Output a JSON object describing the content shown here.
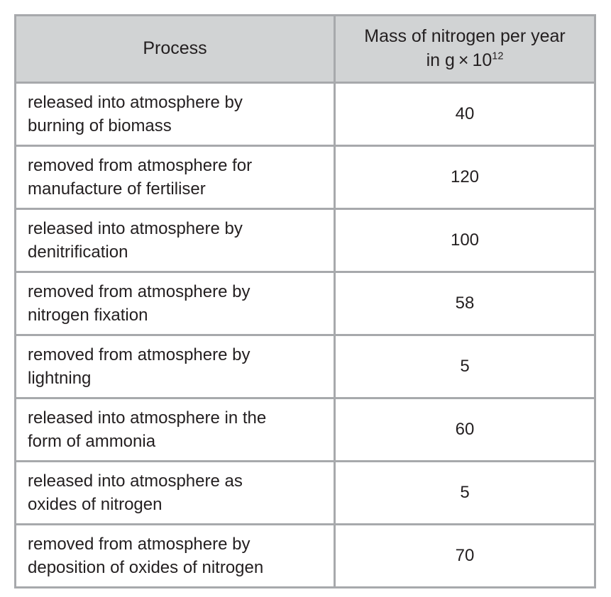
{
  "page": {
    "background": "#ffffff"
  },
  "colors": {
    "header_bg": "#d1d3d4",
    "border": "#a7a9ac",
    "text": "#231f20"
  },
  "table": {
    "header": {
      "process": "Process",
      "mass_line1": "Mass of nitrogen per year",
      "mass_line2_prefix": "in g × 10",
      "mass_line2_sup": "12"
    },
    "rows": [
      {
        "process": "released into atmosphere by\nburning of biomass",
        "mass": "40"
      },
      {
        "process": "removed from atmosphere for\nmanufacture of fertiliser",
        "mass": "120"
      },
      {
        "process": "released into atmosphere by\ndenitrification",
        "mass": "100"
      },
      {
        "process": "removed from atmosphere by\nnitrogen fixation",
        "mass": "58"
      },
      {
        "process": "removed from atmosphere by\nlightning",
        "mass": "5"
      },
      {
        "process": "released into atmosphere in the\nform of ammonia",
        "mass": "60"
      },
      {
        "process": "released into atmosphere as\noxides of nitrogen",
        "mass": "5"
      },
      {
        "process": "removed from atmosphere by\ndeposition of oxides of nitrogen",
        "mass": "70"
      }
    ]
  }
}
